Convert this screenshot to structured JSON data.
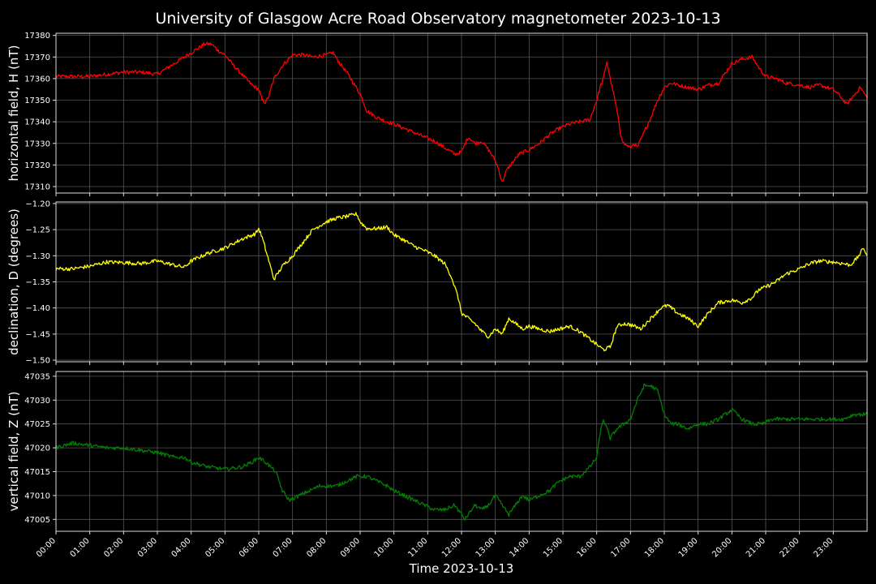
{
  "chart_data": [
    {
      "type": "line",
      "title": "University of Glasgow Acre Road Observatory magnetometer 2023-10-13",
      "xlabel": "Time 2023-10-13",
      "xlim": [
        0,
        24
      ],
      "x_ticks": [
        "00:00",
        "01:00",
        "02:00",
        "03:00",
        "04:00",
        "05:00",
        "06:00",
        "07:00",
        "08:00",
        "09:00",
        "10:00",
        "11:00",
        "12:00",
        "13:00",
        "14:00",
        "15:00",
        "16:00",
        "17:00",
        "18:00",
        "19:00",
        "20:00",
        "21:00",
        "22:00",
        "23:00"
      ],
      "grid": true,
      "panels": [
        {
          "ylabel": "horizontal field, H (nT)",
          "color": "#ff0000",
          "ylim": [
            17307,
            17381
          ],
          "yticks": [
            17310,
            17320,
            17330,
            17340,
            17350,
            17360,
            17370,
            17380
          ],
          "series": {
            "x": [
              0,
              0.5,
              1,
              1.5,
              2,
              2.5,
              3,
              3.3,
              3.6,
              3.8,
              4,
              4.2,
              4.4,
              4.6,
              4.8,
              5,
              5.2,
              5.5,
              5.8,
              6,
              6.1,
              6.2,
              6.3,
              6.45,
              6.7,
              7,
              7.3,
              7.6,
              8,
              8.2,
              8.4,
              8.6,
              8.8,
              9,
              9.2,
              9.5,
              9.8,
              10,
              10.3,
              10.6,
              10.9,
              11.2,
              11.5,
              11.8,
              12,
              12.2,
              12.4,
              12.6,
              12.8,
              13,
              13.1,
              13.2,
              13.35,
              13.5,
              13.7,
              14,
              14.3,
              14.6,
              14.9,
              15.2,
              15.5,
              15.8,
              16,
              16.1,
              16.2,
              16.3,
              16.4,
              16.5,
              16.6,
              16.7,
              16.8,
              17,
              17.1,
              17.2,
              17.4,
              17.6,
              17.8,
              18,
              18.2,
              18.4,
              18.7,
              19,
              19.3,
              19.6,
              20,
              20.3,
              20.6,
              20.8,
              21,
              21.3,
              21.6,
              22,
              22.3,
              22.6,
              23,
              23.2,
              23.4,
              23.6,
              23.8,
              24
            ],
            "y": [
              17361,
              17361,
              17361,
              17362,
              17363,
              17363,
              17362,
              17365,
              17368,
              17370,
              17372,
              17374,
              17376,
              17376,
              17373,
              17371,
              17367,
              17362,
              17357,
              17355,
              17350,
              17349,
              17352,
              17360,
              17366,
              17371,
              17371,
              17370,
              17371,
              17372,
              17367,
              17363,
              17358,
              17353,
              17345,
              17342,
              17340,
              17339,
              17337,
              17335,
              17333,
              17331,
              17328,
              17325,
              17326,
              17333,
              17330,
              17331,
              17327,
              17322,
              17318,
              17312,
              17318,
              17321,
              17325,
              17327,
              17330,
              17334,
              17337,
              17339,
              17340,
              17341,
              17350,
              17356,
              17360,
              17368,
              17360,
              17353,
              17345,
              17335,
              17330,
              17328,
              17330,
              17328,
              17335,
              17342,
              17350,
              17356,
              17358,
              17357,
              17356,
              17355,
              17357,
              17358,
              17367,
              17369,
              17370,
              17365,
              17361,
              17360,
              17358,
              17357,
              17356,
              17357,
              17355,
              17352,
              17348,
              17352,
              17356,
              17351
            ]
          }
        },
        {
          "ylabel": "declination, D (degrees)",
          "color": "#ffff00",
          "ylim": [
            -1.503,
            -1.197
          ],
          "yticks": [
            -1.5,
            -1.45,
            -1.4,
            -1.35,
            -1.3,
            -1.25,
            -1.2
          ],
          "yticklabels": [
            "−1.50",
            "−1.45",
            "−1.40",
            "−1.35",
            "−1.30",
            "−1.25",
            "−1.20"
          ],
          "series": {
            "x": [
              0,
              0.5,
              1,
              1.5,
              2,
              2.5,
              3,
              3.5,
              3.8,
              4,
              4.5,
              5,
              5.5,
              5.9,
              6,
              6.1,
              6.3,
              6.45,
              6.7,
              7,
              7.3,
              7.6,
              8,
              8.3,
              8.6,
              8.9,
              9,
              9.2,
              9.5,
              9.8,
              10,
              10.3,
              10.6,
              10.9,
              11.2,
              11.5,
              11.7,
              11.9,
              12,
              12.2,
              12.4,
              12.6,
              12.8,
              13,
              13.2,
              13.4,
              13.6,
              13.8,
              14,
              14.3,
              14.6,
              14.9,
              15.2,
              15.5,
              15.8,
              16,
              16.2,
              16.4,
              16.6,
              16.8,
              17,
              17.3,
              17.6,
              17.9,
              18.1,
              18.4,
              18.7,
              19,
              19.3,
              19.6,
              20,
              20.3,
              20.6,
              20.8,
              21,
              21.3,
              21.6,
              22,
              22.3,
              22.6,
              23,
              23.3,
              23.5,
              23.7,
              23.9,
              24
            ],
            "y": [
              -1.325,
              -1.325,
              -1.32,
              -1.312,
              -1.313,
              -1.315,
              -1.31,
              -1.318,
              -1.322,
              -1.31,
              -1.295,
              -1.285,
              -1.268,
              -1.258,
              -1.248,
              -1.265,
              -1.31,
              -1.345,
              -1.32,
              -1.3,
              -1.275,
              -1.25,
              -1.235,
              -1.228,
              -1.225,
              -1.22,
              -1.235,
              -1.248,
              -1.248,
              -1.245,
              -1.26,
              -1.27,
              -1.282,
              -1.29,
              -1.3,
              -1.315,
              -1.34,
              -1.38,
              -1.41,
              -1.42,
              -1.43,
              -1.445,
              -1.455,
              -1.44,
              -1.45,
              -1.42,
              -1.43,
              -1.44,
              -1.435,
              -1.44,
              -1.445,
              -1.44,
              -1.435,
              -1.445,
              -1.46,
              -1.47,
              -1.48,
              -1.475,
              -1.435,
              -1.43,
              -1.432,
              -1.44,
              -1.42,
              -1.4,
              -1.395,
              -1.41,
              -1.42,
              -1.435,
              -1.41,
              -1.39,
              -1.385,
              -1.39,
              -1.38,
              -1.365,
              -1.36,
              -1.35,
              -1.335,
              -1.325,
              -1.315,
              -1.31,
              -1.312,
              -1.315,
              -1.318,
              -1.305,
              -1.285,
              -1.3
            ]
          }
        },
        {
          "ylabel": "vertical field, Z (nT)",
          "color": "#008000",
          "ylim": [
            47002.5,
            47036
          ],
          "yticks": [
            47005,
            47010,
            47015,
            47020,
            47025,
            47030,
            47035
          ],
          "series": {
            "x": [
              0,
              0.5,
              1,
              1.5,
              2,
              2.5,
              3,
              3.5,
              3.8,
              4,
              4.5,
              5,
              5.5,
              5.8,
              6,
              6.2,
              6.5,
              6.7,
              6.9,
              7.2,
              7.5,
              7.8,
              8,
              8.3,
              8.6,
              8.9,
              9.2,
              9.5,
              9.8,
              10,
              10.3,
              10.6,
              10.9,
              11.2,
              11.5,
              11.8,
              12,
              12.1,
              12.2,
              12.4,
              12.6,
              12.8,
              13,
              13.2,
              13.4,
              13.6,
              13.8,
              14,
              14.3,
              14.6,
              14.9,
              15.2,
              15.5,
              15.8,
              16,
              16.1,
              16.2,
              16.4,
              16.6,
              16.8,
              17,
              17.2,
              17.4,
              17.6,
              17.8,
              18,
              18.2,
              18.4,
              18.7,
              19,
              19.3,
              19.6,
              20,
              20.3,
              20.6,
              20.9,
              21.2,
              21.5,
              21.8,
              22,
              22.3,
              22.6,
              23,
              23.3,
              23.6,
              23.9,
              24
            ],
            "y": [
              47020,
              47021,
              47020.5,
              47020,
              47020,
              47019.5,
              47019,
              47018,
              47018,
              47017,
              47016,
              47015.5,
              47016,
              47017,
              47018,
              47017,
              47015,
              47011,
              47009,
              47010,
              47011,
              47012,
              47012,
              47012,
              47013,
              47014,
              47014,
              47013,
              47012,
              47011,
              47010,
              47009,
              47008,
              47007,
              47007,
              47008,
              47006,
              47005,
              47006,
              47008,
              47007,
              47008,
              47010,
              47008,
              47006,
              47008,
              47010,
              47009,
              47010,
              47011,
              47013,
              47014,
              47014,
              47016,
              47018,
              47023,
              47026,
              47022,
              47024,
              47025,
              47026,
              47030,
              47033,
              47033,
              47032,
              47027,
              47025,
              47025,
              47024,
              47025,
              47025,
              47026,
              47028,
              47026,
              47025,
              47025,
              47026,
              47026,
              47026,
              47026,
              47026,
              47026,
              47026,
              47026,
              47027,
              47027,
              47027
            ]
          }
        }
      ]
    }
  ]
}
